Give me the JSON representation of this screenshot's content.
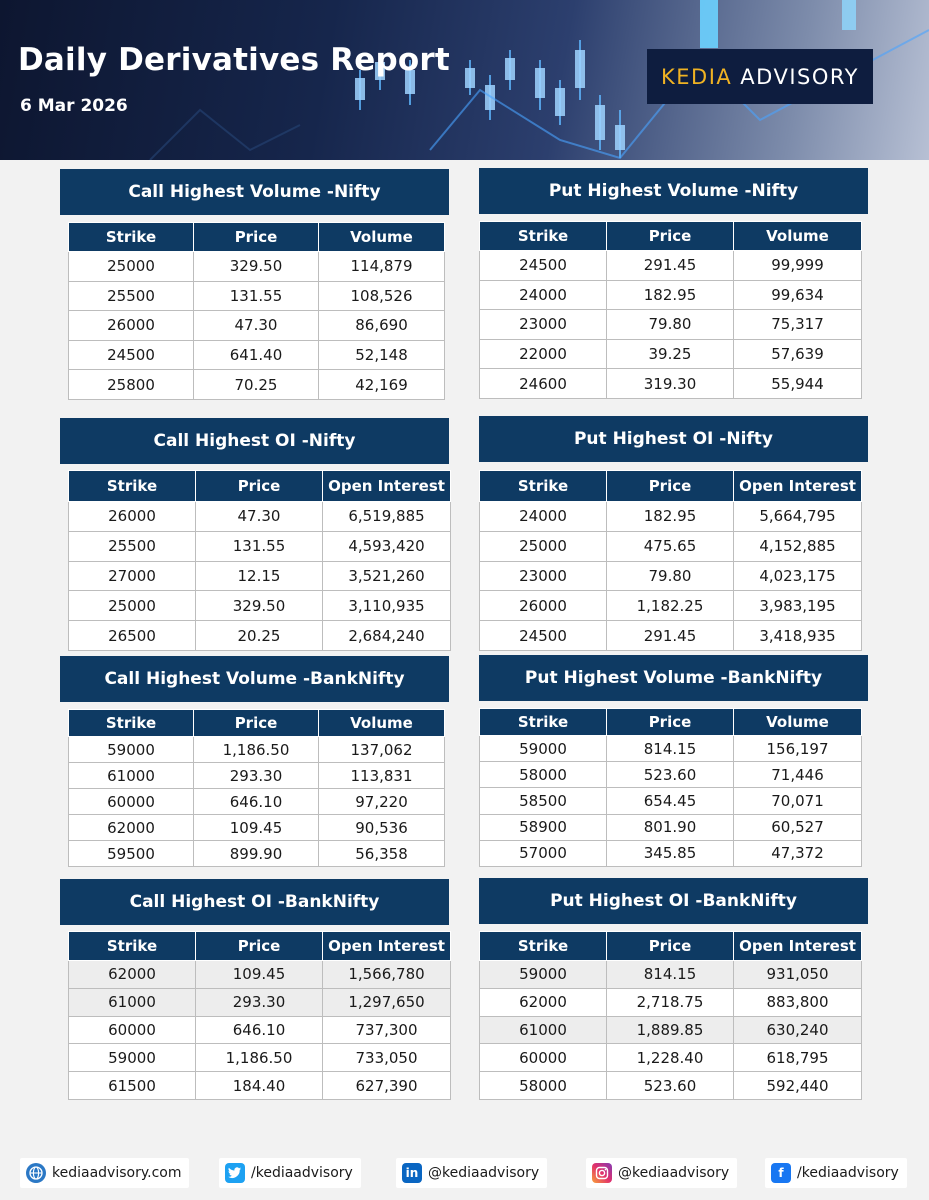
{
  "header": {
    "title": "Daily Derivatives Report",
    "date": "6 Mar 2026",
    "brand_part1": "KEDIA",
    "brand_part2": "ADVISORY",
    "brand_accent": "#f0b323"
  },
  "sections": [
    {
      "title": "Call Highest Volume -Nifty",
      "columns": [
        "Strike",
        "Price",
        "Volume"
      ],
      "rows": [
        [
          "25000",
          "329.50",
          "114,879"
        ],
        [
          "25500",
          "131.55",
          "108,526"
        ],
        [
          "26000",
          "47.30",
          "86,690"
        ],
        [
          "24500",
          "641.40",
          "52,148"
        ],
        [
          "25800",
          "70.25",
          "42,169"
        ]
      ]
    },
    {
      "title": "Put Highest Volume -Nifty",
      "columns": [
        "Strike",
        "Price",
        "Volume"
      ],
      "rows": [
        [
          "24500",
          "291.45",
          "99,999"
        ],
        [
          "24000",
          "182.95",
          "99,634"
        ],
        [
          "23000",
          "79.80",
          "75,317"
        ],
        [
          "22000",
          "39.25",
          "57,639"
        ],
        [
          "24600",
          "319.30",
          "55,944"
        ]
      ]
    },
    {
      "title": "Call Highest OI -Nifty",
      "columns": [
        "Strike",
        "Price",
        "Open Interest"
      ],
      "rows": [
        [
          "26000",
          "47.30",
          "6,519,885"
        ],
        [
          "25500",
          "131.55",
          "4,593,420"
        ],
        [
          "27000",
          "12.15",
          "3,521,260"
        ],
        [
          "25000",
          "329.50",
          "3,110,935"
        ],
        [
          "26500",
          "20.25",
          "2,684,240"
        ]
      ]
    },
    {
      "title": "Put Highest OI -Nifty",
      "columns": [
        "Strike",
        "Price",
        "Open Interest"
      ],
      "rows": [
        [
          "24000",
          "182.95",
          "5,664,795"
        ],
        [
          "25000",
          "475.65",
          "4,152,885"
        ],
        [
          "23000",
          "79.80",
          "4,023,175"
        ],
        [
          "26000",
          "1,182.25",
          "3,983,195"
        ],
        [
          "24500",
          "291.45",
          "3,418,935"
        ]
      ]
    },
    {
      "title": "Call Highest Volume -BankNifty",
      "columns": [
        "Strike",
        "Price",
        "Volume"
      ],
      "rows": [
        [
          "59000",
          "1,186.50",
          "137,062"
        ],
        [
          "61000",
          "293.30",
          "113,831"
        ],
        [
          "60000",
          "646.10",
          "97,220"
        ],
        [
          "62000",
          "109.45",
          "90,536"
        ],
        [
          "59500",
          "899.90",
          "56,358"
        ]
      ]
    },
    {
      "title": "Put Highest Volume -BankNifty",
      "columns": [
        "Strike",
        "Price",
        "Volume"
      ],
      "rows": [
        [
          "59000",
          "814.15",
          "156,197"
        ],
        [
          "58000",
          "523.60",
          "71,446"
        ],
        [
          "58500",
          "654.45",
          "70,071"
        ],
        [
          "58900",
          "801.90",
          "60,527"
        ],
        [
          "57000",
          "345.85",
          "47,372"
        ]
      ]
    },
    {
      "title": "Call Highest OI -BankNifty",
      "columns": [
        "Strike",
        "Price",
        "Open Interest"
      ],
      "rows": [
        [
          "62000",
          "109.45",
          "1,566,780"
        ],
        [
          "61000",
          "293.30",
          "1,297,650"
        ],
        [
          "60000",
          "646.10",
          "737,300"
        ],
        [
          "59000",
          "1,186.50",
          "733,050"
        ],
        [
          "61500",
          "184.40",
          "627,390"
        ]
      ]
    },
    {
      "title": "Put Highest OI -BankNifty",
      "columns": [
        "Strike",
        "Price",
        "Open Interest"
      ],
      "rows": [
        [
          "59000",
          "814.15",
          "931,050"
        ],
        [
          "62000",
          "2,718.75",
          "883,800"
        ],
        [
          "61000",
          "1,889.85",
          "630,240"
        ],
        [
          "60000",
          "1,228.40",
          "618,795"
        ],
        [
          "58000",
          "523.60",
          "592,440"
        ]
      ]
    }
  ],
  "footer": {
    "website": "kediaadvisory.com",
    "twitter": "/kediaadvisory",
    "linkedin": "@kediaadvisory",
    "instagram": "@kediaadvisory",
    "facebook": "/kediaadvisory",
    "icons": [
      "globe-icon",
      "twitter-icon",
      "linkedin-icon",
      "instagram-icon",
      "facebook-icon"
    ]
  },
  "colors": {
    "banner": "#0e3a63",
    "header_dark": "#0d1630",
    "twitter": "#1da1f2",
    "linkedin": "#0a66c2",
    "facebook": "#1877f2"
  }
}
